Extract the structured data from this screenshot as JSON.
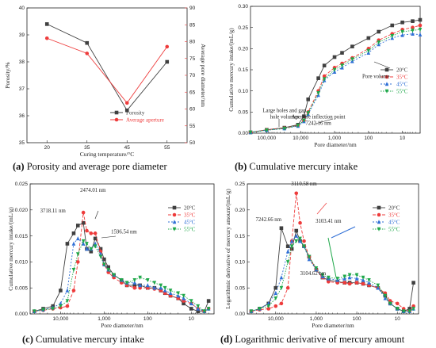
{
  "chart_data": [
    {
      "type": "line",
      "caption_letter": "(a)",
      "caption_text": " Porosity and average pore diameter",
      "xlabel": "Curing temperature/°C",
      "ylabel": "Porosity/%",
      "ylabel_right": "Average pore diameter/nm",
      "categories": [
        "20",
        "35",
        "45",
        "55"
      ],
      "ylim": [
        35,
        40
      ],
      "yticks": [
        35,
        36,
        37,
        38,
        39,
        40
      ],
      "ylim_right": [
        50,
        90
      ],
      "yticks_right": [
        50,
        55,
        60,
        65,
        70,
        75,
        80,
        85,
        90
      ],
      "legend_position": "bottom-right",
      "series": [
        {
          "name": "Porosity",
          "axis": "left",
          "color": "#404040",
          "marker": "square",
          "dash": "",
          "values": [
            39.4,
            38.7,
            36.2,
            38.0
          ]
        },
        {
          "name": "Average aperture",
          "axis": "right",
          "color": "#ee3b3b",
          "marker": "circle",
          "dash": "",
          "values": [
            81.0,
            76.5,
            61.8,
            78.5
          ]
        }
      ]
    },
    {
      "type": "line",
      "caption_letter": "(b)",
      "caption_text": " Cumulative mercury intake",
      "xlabel": "Pore diameter/nm",
      "ylabel": "Cumulative mercury intake/(mL/g)",
      "xscale": "log-reversed",
      "xlim": [
        300000,
        3
      ],
      "xticks": [
        100000,
        10000,
        1000,
        100,
        10
      ],
      "xticklabels": [
        "100,000",
        "10,000",
        "1,000",
        "100",
        "10"
      ],
      "ylim": [
        0,
        0.3
      ],
      "yticks": [
        0.0,
        0.05,
        0.1,
        0.15,
        0.2,
        0.25,
        0.3
      ],
      "yticklabels": [
        "0.00",
        "0.05",
        "0.10",
        "0.15",
        "0.20",
        "0.25",
        "0.30"
      ],
      "legend_position": "right",
      "series": [
        {
          "name": "20°C",
          "color": "#404040",
          "marker": "square",
          "dash": "",
          "x": [
            300000,
            100000,
            30000,
            12000,
            8000,
            6000,
            3000,
            2000,
            1000,
            600,
            300,
            100,
            50,
            20,
            10,
            5,
            3
          ],
          "values": [
            0.002,
            0.008,
            0.013,
            0.02,
            0.04,
            0.08,
            0.13,
            0.16,
            0.18,
            0.19,
            0.205,
            0.225,
            0.24,
            0.255,
            0.262,
            0.265,
            0.268
          ]
        },
        {
          "name": "35°C",
          "color": "#ee3b3b",
          "marker": "circle",
          "dash": "4,2",
          "x": [
            300000,
            100000,
            30000,
            12000,
            8000,
            6000,
            3000,
            2000,
            1000,
            600,
            300,
            100,
            50,
            20,
            10,
            5,
            3
          ],
          "values": [
            0.002,
            0.008,
            0.012,
            0.018,
            0.03,
            0.05,
            0.1,
            0.135,
            0.155,
            0.165,
            0.178,
            0.2,
            0.22,
            0.235,
            0.245,
            0.25,
            0.255
          ]
        },
        {
          "name": "45°C",
          "color": "#2f6fd6",
          "marker": "triangle",
          "dash": "2,2",
          "x": [
            300000,
            100000,
            30000,
            12000,
            8000,
            6000,
            3000,
            2000,
            1000,
            600,
            300,
            100,
            50,
            20,
            10,
            5,
            3
          ],
          "values": [
            0.002,
            0.007,
            0.011,
            0.017,
            0.028,
            0.045,
            0.09,
            0.125,
            0.145,
            0.155,
            0.17,
            0.19,
            0.21,
            0.225,
            0.232,
            0.235,
            0.233
          ]
        },
        {
          "name": "55°C",
          "color": "#1fa84a",
          "marker": "triangle-down",
          "dash": "1.5,1.5",
          "x": [
            300000,
            100000,
            30000,
            12000,
            8000,
            6000,
            3000,
            2000,
            1000,
            600,
            300,
            100,
            50,
            20,
            10,
            5,
            3
          ],
          "values": [
            0.002,
            0.007,
            0.011,
            0.018,
            0.03,
            0.048,
            0.095,
            0.128,
            0.15,
            0.16,
            0.175,
            0.195,
            0.215,
            0.23,
            0.24,
            0.243,
            0.245
          ]
        }
      ],
      "annotations": [
        {
          "text": "Large holes and gap",
          "x": 30000,
          "y": 0.05
        },
        {
          "text": "hole volumes",
          "x": 30000,
          "y": 0.035
        },
        {
          "text": "Aperture inflection point",
          "x": 3000,
          "y": 0.035
        },
        {
          "text": "7242.16 nm",
          "x": 3000,
          "y": 0.02
        },
        {
          "text": "Pore volume",
          "x": 60,
          "y": 0.13
        }
      ]
    },
    {
      "type": "line",
      "caption_letter": "(c)",
      "caption_text": " Cumulative mercury intake",
      "xlabel": "Pore diameter/nm",
      "ylabel": "Cumulative mercury intake/(mL/g)",
      "xscale": "log-reversed",
      "xlim": [
        50000,
        3
      ],
      "xticks": [
        10000,
        1000,
        100,
        10
      ],
      "xticklabels": [
        "10,000",
        "1,000",
        "100",
        "10"
      ],
      "ylim": [
        0,
        0.025
      ],
      "yticks": [
        0.0,
        0.005,
        0.01,
        0.015,
        0.02,
        0.025
      ],
      "yticklabels": [
        "0.000",
        "0.005",
        "0.010",
        "0.015",
        "0.020",
        "0.025"
      ],
      "legend_position": "top-right",
      "series": [
        {
          "name": "20°C",
          "color": "#404040",
          "marker": "square",
          "dash": "",
          "x": [
            40000,
            25000,
            15000,
            10000,
            7000,
            5000,
            4000,
            3000,
            2500,
            2000,
            1600,
            1200,
            1000,
            800,
            600,
            400,
            300,
            200,
            150,
            100,
            70,
            50,
            40,
            30,
            20,
            15,
            10,
            7,
            5,
            4
          ],
          "values": [
            0.0005,
            0.001,
            0.0015,
            0.0045,
            0.0135,
            0.0155,
            0.017,
            0.0175,
            0.0125,
            0.012,
            0.0145,
            0.0125,
            0.0105,
            0.009,
            0.0075,
            0.0065,
            0.0055,
            0.0055,
            0.0055,
            0.005,
            0.005,
            0.0045,
            0.004,
            0.0035,
            0.003,
            0.002,
            0.001,
            0.0005,
            0.0005,
            0.0025
          ]
        },
        {
          "name": "35°C",
          "color": "#ee3b3b",
          "marker": "circle",
          "dash": "4,2",
          "x": [
            40000,
            25000,
            15000,
            10000,
            7000,
            5000,
            4000,
            3000,
            2500,
            2000,
            1600,
            1200,
            1000,
            800,
            600,
            400,
            300,
            200,
            150,
            100,
            70,
            50,
            40,
            30,
            20,
            15,
            10,
            7,
            5,
            4
          ],
          "values": [
            0.0005,
            0.0007,
            0.001,
            0.0012,
            0.0015,
            0.0045,
            0.01,
            0.0195,
            0.016,
            0.0155,
            0.0155,
            0.012,
            0.0095,
            0.008,
            0.007,
            0.006,
            0.0055,
            0.005,
            0.005,
            0.005,
            0.0048,
            0.0045,
            0.004,
            0.0035,
            0.003,
            0.0025,
            0.002,
            0.001,
            0.0005,
            0.001
          ]
        },
        {
          "name": "45°C",
          "color": "#2f6fd6",
          "marker": "triangle",
          "dash": "2,2",
          "x": [
            40000,
            25000,
            15000,
            10000,
            7000,
            5000,
            4000,
            3000,
            2500,
            2000,
            1600,
            1200,
            1000,
            800,
            600,
            400,
            300,
            200,
            150,
            100,
            70,
            50,
            40,
            30,
            20,
            15,
            10,
            7,
            5,
            4
          ],
          "values": [
            0.0005,
            0.0008,
            0.0012,
            0.002,
            0.0045,
            0.0135,
            0.0145,
            0.0135,
            0.0125,
            0.0125,
            0.0135,
            0.0115,
            0.0095,
            0.0085,
            0.0075,
            0.0065,
            0.006,
            0.006,
            0.0055,
            0.0055,
            0.005,
            0.005,
            0.0045,
            0.004,
            0.0035,
            0.003,
            0.002,
            0.001,
            0.0005,
            0.001
          ]
        },
        {
          "name": "55°C",
          "color": "#1fa84a",
          "marker": "triangle-down",
          "dash": "1.5,1.5",
          "x": [
            40000,
            25000,
            15000,
            10000,
            7000,
            5000,
            4000,
            3000,
            2500,
            2000,
            1600,
            1200,
            1000,
            800,
            600,
            400,
            300,
            200,
            150,
            100,
            70,
            50,
            40,
            30,
            20,
            15,
            10,
            7,
            5,
            4
          ],
          "values": [
            0.0005,
            0.0008,
            0.001,
            0.0015,
            0.0025,
            0.0085,
            0.0115,
            0.014,
            0.0135,
            0.0125,
            0.013,
            0.011,
            0.0095,
            0.0085,
            0.0075,
            0.0065,
            0.006,
            0.0065,
            0.007,
            0.0065,
            0.006,
            0.0055,
            0.005,
            0.0045,
            0.004,
            0.0035,
            0.0025,
            0.0015,
            0.0005,
            0.001
          ]
        }
      ],
      "annotations": [
        {
          "text": "3718.11 nm",
          "x": 15000,
          "y": 0.0195
        },
        {
          "text": "2474.01 nm",
          "x": 1800,
          "y": 0.0235
        },
        {
          "text": "1596.54 nm",
          "x": 350,
          "y": 0.0155
        }
      ]
    },
    {
      "type": "line",
      "caption_letter": "(d)",
      "caption_text": " Logarithmic derivative of mercury amount",
      "xlabel": "Pore diameter/nm",
      "ylabel": "Logarithmic derivative of mercury amount/(mL/g)",
      "xscale": "log-reversed",
      "xlim": [
        50000,
        3
      ],
      "xticks": [
        10000,
        1000,
        100,
        10
      ],
      "xticklabels": [
        "10,000",
        "1,000",
        "100",
        "10"
      ],
      "ylim": [
        0,
        0.25
      ],
      "yticks": [
        0.0,
        0.05,
        0.1,
        0.15,
        0.2,
        0.25
      ],
      "yticklabels": [
        "0.00",
        "0.05",
        "0.10",
        "0.15",
        "0.20",
        "0.25"
      ],
      "legend_position": "top-right",
      "series": [
        {
          "name": "20°C",
          "color": "#404040",
          "marker": "square",
          "dash": "",
          "x": [
            40000,
            25000,
            15000,
            10000,
            7242,
            5000,
            4000,
            3103,
            2500,
            2000,
            1500,
            1000,
            700,
            500,
            300,
            200,
            150,
            100,
            70,
            50,
            30,
            20,
            15,
            10,
            7,
            5,
            4
          ],
          "values": [
            0.005,
            0.01,
            0.02,
            0.05,
            0.165,
            0.13,
            0.125,
            0.16,
            0.14,
            0.13,
            0.11,
            0.085,
            0.07,
            0.065,
            0.062,
            0.06,
            0.06,
            0.06,
            0.058,
            0.055,
            0.05,
            0.035,
            0.02,
            0.01,
            0.005,
            0.01,
            0.06
          ]
        },
        {
          "name": "35°C",
          "color": "#ee3b3b",
          "marker": "circle",
          "dash": "4,2",
          "x": [
            40000,
            25000,
            15000,
            10000,
            7242,
            5000,
            4000,
            3103,
            2500,
            2000,
            1500,
            1000,
            700,
            500,
            300,
            200,
            150,
            100,
            70,
            50,
            30,
            20,
            15,
            10,
            7,
            5,
            4
          ],
          "values": [
            0.005,
            0.008,
            0.01,
            0.015,
            0.02,
            0.05,
            0.14,
            0.232,
            0.175,
            0.14,
            0.11,
            0.085,
            0.07,
            0.062,
            0.06,
            0.06,
            0.058,
            0.06,
            0.058,
            0.055,
            0.05,
            0.04,
            0.025,
            0.02,
            0.01,
            0.005,
            0.015
          ]
        },
        {
          "name": "45°C",
          "color": "#2f6fd6",
          "marker": "triangle",
          "dash": "2,2",
          "x": [
            40000,
            25000,
            15000,
            10000,
            7242,
            5000,
            4000,
            3103,
            2500,
            2000,
            1500,
            1000,
            700,
            500,
            300,
            200,
            150,
            100,
            70,
            50,
            30,
            20,
            15,
            10,
            7,
            5,
            4
          ],
          "values": [
            0.005,
            0.01,
            0.02,
            0.04,
            0.07,
            0.12,
            0.14,
            0.15,
            0.14,
            0.13,
            0.105,
            0.085,
            0.072,
            0.068,
            0.065,
            0.068,
            0.07,
            0.068,
            0.065,
            0.06,
            0.05,
            0.03,
            0.02,
            0.01,
            0.005,
            0.005,
            0.01
          ]
        },
        {
          "name": "55°C",
          "color": "#1fa84a",
          "marker": "triangle-down",
          "dash": "1.5,1.5",
          "x": [
            40000,
            25000,
            15000,
            10000,
            7242,
            5000,
            4000,
            3103,
            2500,
            2000,
            1500,
            1000,
            700,
            500,
            300,
            200,
            150,
            100,
            70,
            50,
            30,
            20,
            15,
            10,
            7,
            5,
            4
          ],
          "values": [
            0.005,
            0.01,
            0.015,
            0.03,
            0.05,
            0.1,
            0.13,
            0.14,
            0.145,
            0.13,
            0.11,
            0.088,
            0.075,
            0.07,
            0.068,
            0.072,
            0.075,
            0.075,
            0.07,
            0.065,
            0.055,
            0.035,
            0.02,
            0.01,
            0.005,
            0.005,
            0.01
          ]
        }
      ],
      "annotations": [
        {
          "text": "7242.66 nm",
          "x": 15000,
          "y": 0.178
        },
        {
          "text": "3110.58 nm",
          "x": 2000,
          "y": 0.247
        },
        {
          "text": "3103.41 nm",
          "x": 500,
          "y": 0.175
        },
        {
          "text": "3104.62 nm",
          "x": 1200,
          "y": 0.075
        }
      ]
    }
  ],
  "colors": {
    "black": "#404040",
    "red": "#ee3b3b",
    "blue": "#2f6fd6",
    "green": "#1fa84a"
  }
}
